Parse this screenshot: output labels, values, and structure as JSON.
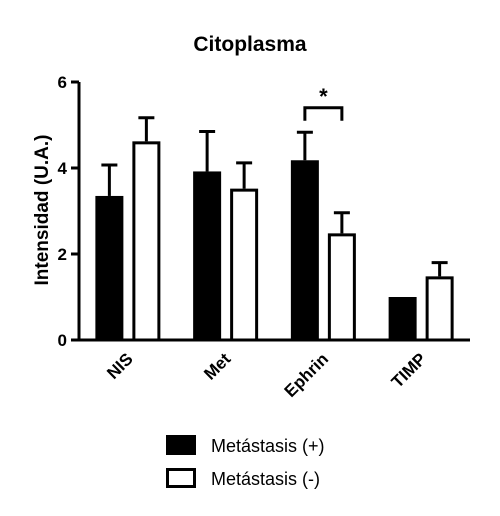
{
  "chart_data": {
    "type": "bar",
    "title": "Citoplasma",
    "xlabel": "",
    "ylabel": "Intensidad (U.A.)",
    "ylim": [
      0,
      6
    ],
    "yticks": [
      0,
      2,
      4,
      6
    ],
    "categories": [
      "NIS",
      "Met",
      "Ephrin",
      "TIMP"
    ],
    "series": [
      {
        "name": "Metástasis (+)",
        "color": "#000000",
        "fill": "#000000",
        "values": [
          3.35,
          3.92,
          4.18,
          1.0
        ],
        "errors": [
          0.72,
          0.93,
          0.65,
          0.0
        ]
      },
      {
        "name": "Metástasis (-)",
        "color": "#000000",
        "fill": "#ffffff",
        "values": [
          4.62,
          3.52,
          2.48,
          1.48
        ],
        "errors": [
          0.55,
          0.6,
          0.48,
          0.32
        ]
      }
    ],
    "significance": {
      "category": "Ephrin",
      "label": "*"
    },
    "grid": false,
    "legend_position": "bottom"
  }
}
